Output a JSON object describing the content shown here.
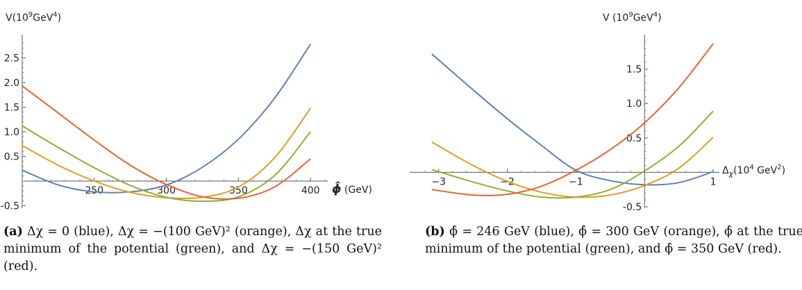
{
  "chart_data": [
    {
      "type": "line",
      "panel": "a",
      "ylabel_parts": [
        "V(10",
        "9",
        "GeV",
        "4",
        ")"
      ],
      "xlabel_parts": [
        "ϕ̂",
        " (GeV)"
      ],
      "xlim": [
        200,
        410
      ],
      "ylim": [
        -0.55,
        2.9
      ],
      "x_ticks": [
        250,
        300,
        350,
        400
      ],
      "x_tick_labels": [
        "250",
        "300",
        "350",
        "400"
      ],
      "y_ticks": [
        -0.5,
        0.5,
        1.0,
        1.5,
        2.0,
        2.5
      ],
      "y_tick_labels": [
        "-0.5",
        "0.5",
        "1.0",
        "1.5",
        "2.0",
        "2.5"
      ],
      "grid": false,
      "series": [
        {
          "color": "#5e81b5",
          "x": [
            200,
            225,
            250,
            275,
            300,
            325,
            350,
            375,
            400
          ],
          "y": [
            0.22,
            -0.08,
            -0.22,
            -0.22,
            -0.08,
            0.28,
            0.85,
            1.68,
            2.78
          ]
        },
        {
          "color": "#e19c24",
          "x": [
            200,
            225,
            250,
            275,
            300,
            325,
            350,
            375,
            400
          ],
          "y": [
            0.72,
            0.32,
            0.0,
            -0.23,
            -0.34,
            -0.33,
            -0.12,
            0.47,
            1.48
          ]
        },
        {
          "color": "#8fb032",
          "x": [
            200,
            225,
            250,
            275,
            300,
            325,
            350,
            375,
            400
          ],
          "y": [
            1.12,
            0.68,
            0.27,
            -0.09,
            -0.33,
            -0.41,
            -0.32,
            0.11,
            1.0
          ]
        },
        {
          "color": "#eb6235",
          "x": [
            200,
            225,
            250,
            275,
            300,
            325,
            350,
            375,
            400
          ],
          "y": [
            1.93,
            1.38,
            0.83,
            0.32,
            -0.07,
            -0.32,
            -0.35,
            -0.12,
            0.45
          ]
        }
      ]
    },
    {
      "type": "line",
      "panel": "b",
      "ylabel_parts": [
        "V (10",
        "9",
        "GeV",
        "4",
        ")"
      ],
      "xlabel_parts": [
        "Δ",
        "χ",
        "(10",
        "4",
        " GeV",
        "2",
        ")"
      ],
      "xlim": [
        -3.2,
        1.05
      ],
      "ylim": [
        -0.52,
        1.95
      ],
      "x_ticks": [
        -3,
        -2,
        -1,
        1
      ],
      "x_tick_labels": [
        "−3",
        "−2",
        "−1",
        "1"
      ],
      "y_ticks": [
        -0.5,
        0.5,
        1.0,
        1.5
      ],
      "y_tick_labels": [
        "-0.5",
        "0.5",
        "1.0",
        "1.5"
      ],
      "grid": false,
      "series": [
        {
          "color": "#5e81b5",
          "x": [
            -3.1,
            -2.5,
            -2.0,
            -1.5,
            -1.0,
            -0.5,
            0.0,
            0.5,
            1.0
          ],
          "y": [
            1.72,
            1.2,
            0.78,
            0.39,
            0.03,
            -0.12,
            -0.18,
            -0.15,
            0.01
          ]
        },
        {
          "color": "#e19c24",
          "x": [
            -3.1,
            -2.5,
            -2.0,
            -1.5,
            -1.0,
            -0.5,
            0.0,
            0.5,
            1.0
          ],
          "y": [
            0.44,
            0.1,
            -0.13,
            -0.29,
            -0.36,
            -0.33,
            -0.19,
            0.06,
            0.51
          ]
        },
        {
          "color": "#8fb032",
          "x": [
            -3.1,
            -2.5,
            -2.0,
            -1.5,
            -1.0,
            -0.5,
            0.0,
            0.5,
            1.0
          ],
          "y": [
            0.04,
            -0.14,
            -0.27,
            -0.36,
            -0.36,
            -0.25,
            0.02,
            0.38,
            0.89
          ]
        },
        {
          "color": "#eb6235",
          "x": [
            -3.1,
            -2.5,
            -2.0,
            -1.5,
            -1.0,
            -0.5,
            0.0,
            0.5,
            1.0
          ],
          "y": [
            -0.25,
            -0.33,
            -0.32,
            -0.2,
            0.03,
            0.33,
            0.72,
            1.23,
            1.87
          ]
        }
      ]
    }
  ],
  "captions": {
    "a_label": "(a)",
    "a_text": "Δχ = 0 (blue), Δχ = −(100 GeV)² (orange), Δχ at the true minimum of the potential (green), and Δχ = −(150 GeV)² (red).",
    "b_label": "(b)",
    "b_text": "ϕ̂ = 246 GeV (blue), ϕ̂ = 300 GeV (orange), ϕ̂ at the true minimum of the potential (green), and ϕ̂ = 350 GeV (red)."
  }
}
